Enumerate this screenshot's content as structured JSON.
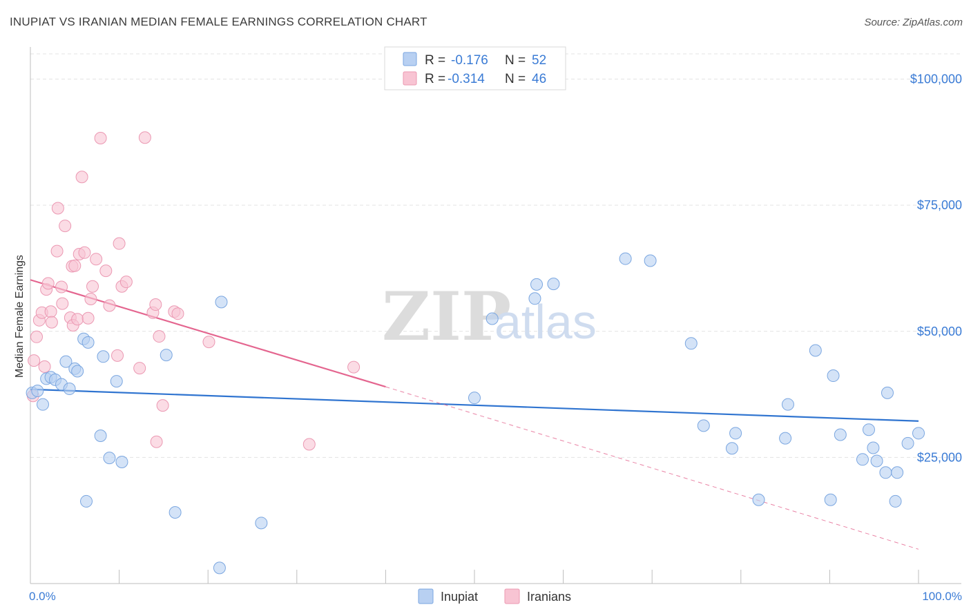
{
  "header": {
    "title": "INUPIAT VS IRANIAN MEDIAN FEMALE EARNINGS CORRELATION CHART",
    "source": "Source: ZipAtlas.com"
  },
  "watermark": {
    "zip": "ZIP",
    "atlas": "atlas"
  },
  "legend": {
    "series": [
      {
        "r_label": "R =",
        "r_value": "-0.176",
        "n_label": "N =",
        "n_value": "52"
      },
      {
        "r_label": "R =",
        "r_value": "-0.314",
        "n_label": "N =",
        "n_value": "46"
      }
    ]
  },
  "colors": {
    "inupiat_fill": "#b8d0f2",
    "inupiat_stroke": "#7aa6e0",
    "inupiat_line": "#2f74d0",
    "iranians_fill": "#f8c4d3",
    "iranians_stroke": "#eb98b2",
    "iranians_line": "#e4658f",
    "grid": "#e3e3e3",
    "axis_text": "#3a7bd5"
  },
  "chart_data": {
    "type": "scatter",
    "title": "INUPIAT VS IRANIAN MEDIAN FEMALE EARNINGS CORRELATION CHART",
    "xlabel": "",
    "ylabel": "Median Female Earnings",
    "xlim": [
      0,
      100
    ],
    "ylim": [
      0,
      105000
    ],
    "x_tick_labels": [
      "0.0%",
      "100.0%"
    ],
    "y_ticks": [
      25000,
      50000,
      75000,
      100000
    ],
    "y_tick_labels": [
      "$25,000",
      "$50,000",
      "$75,000",
      "$100,000"
    ],
    "legend_position": "top-center",
    "series": [
      {
        "name": "Inupiat",
        "r": -0.176,
        "n": 52,
        "trend": {
          "x": [
            0,
            100
          ],
          "y": [
            38500,
            32200
          ]
        },
        "points": [
          [
            0.2,
            37800
          ],
          [
            1.4,
            35500
          ],
          [
            1.8,
            40600
          ],
          [
            2.3,
            40900
          ],
          [
            2.8,
            40400
          ],
          [
            3.5,
            39500
          ],
          [
            4.0,
            44000
          ],
          [
            4.4,
            38600
          ],
          [
            5.0,
            42600
          ],
          [
            5.3,
            42100
          ],
          [
            6.0,
            48500
          ],
          [
            6.5,
            47800
          ],
          [
            7.9,
            29300
          ],
          [
            8.2,
            45000
          ],
          [
            8.9,
            24900
          ],
          [
            9.7,
            40100
          ],
          [
            10.3,
            24100
          ],
          [
            6.3,
            16300
          ],
          [
            15.3,
            45300
          ],
          [
            16.3,
            14100
          ],
          [
            21.3,
            3100
          ],
          [
            21.5,
            55800
          ],
          [
            26.0,
            12000
          ],
          [
            50.0,
            36800
          ],
          [
            52.0,
            52500
          ],
          [
            56.8,
            56500
          ],
          [
            57.0,
            59300
          ],
          [
            58.9,
            59400
          ],
          [
            67.0,
            64400
          ],
          [
            69.8,
            64000
          ],
          [
            74.4,
            47600
          ],
          [
            75.8,
            31300
          ],
          [
            79.0,
            26800
          ],
          [
            79.4,
            29800
          ],
          [
            82.0,
            16600
          ],
          [
            85.0,
            28800
          ],
          [
            85.3,
            35500
          ],
          [
            88.4,
            46200
          ],
          [
            90.1,
            16600
          ],
          [
            90.4,
            41200
          ],
          [
            91.2,
            29500
          ],
          [
            93.7,
            24600
          ],
          [
            94.4,
            30500
          ],
          [
            94.9,
            26900
          ],
          [
            95.3,
            24300
          ],
          [
            96.3,
            22000
          ],
          [
            96.5,
            37800
          ],
          [
            97.4,
            16300
          ],
          [
            97.6,
            22000
          ],
          [
            98.8,
            27800
          ],
          [
            100.0,
            29800
          ],
          [
            0.8,
            38200
          ]
        ]
      },
      {
        "name": "Iranians",
        "r": -0.314,
        "n": 46,
        "trend": {
          "x": [
            0,
            40
          ],
          "y": [
            60200,
            39000
          ]
        },
        "trend_extrapolated": {
          "x": [
            40,
            100
          ],
          "y": [
            39000,
            6800
          ]
        },
        "points": [
          [
            0.3,
            37200
          ],
          [
            0.4,
            44200
          ],
          [
            0.7,
            48900
          ],
          [
            1.0,
            52200
          ],
          [
            1.3,
            53700
          ],
          [
            1.6,
            43000
          ],
          [
            1.8,
            58300
          ],
          [
            2.0,
            59500
          ],
          [
            2.3,
            53900
          ],
          [
            2.4,
            51800
          ],
          [
            3.0,
            65900
          ],
          [
            3.1,
            74400
          ],
          [
            3.5,
            58800
          ],
          [
            3.6,
            55500
          ],
          [
            3.9,
            70900
          ],
          [
            4.5,
            52700
          ],
          [
            4.7,
            62900
          ],
          [
            4.8,
            51200
          ],
          [
            5.0,
            63000
          ],
          [
            5.3,
            52400
          ],
          [
            5.5,
            65300
          ],
          [
            5.8,
            80600
          ],
          [
            6.1,
            65600
          ],
          [
            6.5,
            52600
          ],
          [
            6.8,
            56400
          ],
          [
            7.0,
            58900
          ],
          [
            7.4,
            64300
          ],
          [
            7.9,
            88300
          ],
          [
            8.5,
            62000
          ],
          [
            8.9,
            55100
          ],
          [
            9.8,
            45200
          ],
          [
            10.0,
            67400
          ],
          [
            10.3,
            58900
          ],
          [
            10.8,
            59800
          ],
          [
            12.3,
            42700
          ],
          [
            12.9,
            88400
          ],
          [
            13.8,
            53700
          ],
          [
            14.1,
            55300
          ],
          [
            14.5,
            49000
          ],
          [
            14.9,
            35300
          ],
          [
            14.2,
            28100
          ],
          [
            16.2,
            53900
          ],
          [
            16.6,
            53500
          ],
          [
            20.1,
            47900
          ],
          [
            31.4,
            27600
          ],
          [
            36.4,
            42900
          ]
        ]
      }
    ]
  },
  "bottom_legend": {
    "items": [
      "Inupiat",
      "Iranians"
    ]
  }
}
